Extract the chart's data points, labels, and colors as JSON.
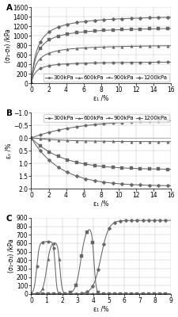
{
  "subplot_A": {
    "xlabel": "ε₁ /%",
    "ylabel": "(σ₁-σ₃) /kPa",
    "xlim": [
      0,
      16
    ],
    "ylim": [
      0,
      1600
    ],
    "yticks": [
      0,
      200,
      400,
      600,
      800,
      1000,
      1200,
      1400,
      1600
    ],
    "xticks": [
      0,
      2,
      4,
      6,
      8,
      10,
      12,
      14,
      16
    ],
    "curves": [
      {
        "label": "300kPa",
        "peak": 460,
        "a": 0.5
      },
      {
        "label": "600kPa",
        "peak": 820,
        "a": 0.6
      },
      {
        "label": "900kPa",
        "peak": 1200,
        "a": 0.65
      },
      {
        "label": "1200kPa",
        "peak": 1450,
        "a": 0.7
      }
    ]
  },
  "subplot_B": {
    "xlabel": "ε₁ /%",
    "ylabel": "εᵥ /%",
    "xlim": [
      0,
      16
    ],
    "yticks": [
      -1.0,
      -0.5,
      0.0,
      0.5,
      1.0,
      1.5,
      2.0
    ],
    "xticks": [
      0,
      2,
      4,
      6,
      8,
      10,
      12,
      14,
      16
    ],
    "curves": [
      {
        "label": "300kPa",
        "type": "dilate",
        "final": -0.72,
        "rate": 0.18
      },
      {
        "label": "600kPa",
        "type": "compress",
        "final": 0.15,
        "rate": 0.25,
        "dip": 0.0
      },
      {
        "label": "900kPa",
        "type": "compress",
        "final": 1.25,
        "rate": 0.28,
        "dip": 0.0
      },
      {
        "label": "1200kPa",
        "type": "compress",
        "final": 1.9,
        "rate": 0.3,
        "dip": 0.0
      }
    ]
  },
  "subplot_C": {
    "xlabel": "ε₁ /%",
    "ylabel": "(σ₁-σ₃) /kPa",
    "xlim": [
      0,
      9
    ],
    "ylim": [
      0,
      900
    ],
    "yticks": [
      0,
      100,
      200,
      300,
      400,
      500,
      600,
      700,
      800,
      900
    ],
    "xticks": [
      0,
      1,
      2,
      3,
      4,
      5,
      6,
      7,
      8,
      9
    ],
    "curves": [
      {
        "label": "300kPa",
        "rise_x0": 0.35,
        "rise_k": 12,
        "peak": 620,
        "drop": true,
        "drop_x0": 1.55,
        "drop_k": 18,
        "residual": 0
      },
      {
        "label": "600kPa",
        "rise_x0": 1.0,
        "rise_k": 8,
        "peak": 620,
        "drop": true,
        "drop_x0": 1.85,
        "drop_k": 14,
        "residual": 0
      },
      {
        "label": "900kPa",
        "rise_x0": 3.2,
        "rise_k": 6,
        "peak": 800,
        "drop": true,
        "drop_x0": 4.05,
        "drop_k": 14,
        "residual": 0
      },
      {
        "label": "1200kPa",
        "rise_x0": 4.5,
        "rise_k": 4,
        "peak": 870,
        "drop": false,
        "residual": 870
      }
    ]
  },
  "color": "#666666",
  "markers": [
    "o",
    "^",
    "s",
    "D"
  ],
  "marker_size": 2.5,
  "line_width": 0.75,
  "font_size": 5.5,
  "bg": "#ffffff",
  "grid_color": "#bbbbbb"
}
